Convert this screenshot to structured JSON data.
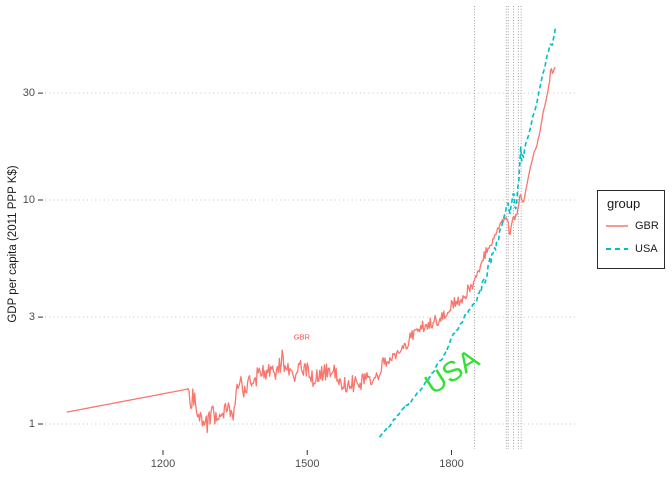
{
  "figure": {
    "background": "#FFFFFF"
  },
  "chart_data": {
    "type": "line",
    "title": "",
    "xlabel": "",
    "ylabel": "GDP per capita (2011 PPP K$)",
    "x_scale": "linear",
    "y_scale": "log10",
    "xlim": [
      955,
      2063
    ],
    "ylim": [
      0.77,
      73.5
    ],
    "x_ticks": [
      1200,
      1500,
      1800
    ],
    "x_tick_labels": [
      "1200",
      "1500",
      "1800"
    ],
    "y_ticks": [
      1,
      3,
      10,
      30
    ],
    "y_tick_labels": [
      "1",
      "3",
      "10",
      "30"
    ],
    "grid": {
      "horizontal": "dotted",
      "vertical": "none",
      "color": "#C7C7C7"
    },
    "vlines": {
      "years": [
        1848,
        1914,
        1918,
        1929,
        1939,
        1945
      ],
      "style": "dotted",
      "color": "#9E9E9E"
    },
    "tick_color": "#333333",
    "legend": {
      "title": "group",
      "position": "right",
      "entries": [
        {
          "label": "GBR"
        },
        {
          "label": "USA"
        }
      ]
    },
    "annotations": [
      {
        "text": "GBR",
        "x": 1489,
        "y": 2.45,
        "color": "#FF4C4C",
        "size": 7.5,
        "rotate": 0
      },
      {
        "text": "USA",
        "x": 1801,
        "y": 1.71,
        "color": "#33E033",
        "size": 28,
        "rotate": -33
      }
    ],
    "series": [
      {
        "name": "GBR",
        "color": "#F8766D",
        "line": "solid",
        "width": 1.3,
        "points": [
          [
            1000,
            1.13
          ],
          [
            1250,
            1.43
          ],
          [
            1254,
            1.33
          ],
          [
            1258,
            1.28
          ],
          [
            1262,
            1.34
          ],
          [
            1268,
            1.24
          ],
          [
            1274,
            1.14
          ],
          [
            1280,
            1.06
          ],
          [
            1286,
            1.01
          ],
          [
            1292,
            1.0
          ],
          [
            1298,
            1.09
          ],
          [
            1304,
            1.12
          ],
          [
            1310,
            1.06
          ],
          [
            1316,
            1.14
          ],
          [
            1322,
            1.1
          ],
          [
            1328,
            1.18
          ],
          [
            1334,
            1.13
          ],
          [
            1340,
            1.17
          ],
          [
            1346,
            1.1
          ],
          [
            1350,
            1.25
          ],
          [
            1354,
            1.48
          ],
          [
            1358,
            1.54
          ],
          [
            1364,
            1.47
          ],
          [
            1370,
            1.43
          ],
          [
            1376,
            1.56
          ],
          [
            1382,
            1.5
          ],
          [
            1388,
            1.58
          ],
          [
            1394,
            1.62
          ],
          [
            1400,
            1.66
          ],
          [
            1408,
            1.73
          ],
          [
            1416,
            1.68
          ],
          [
            1424,
            1.72
          ],
          [
            1432,
            1.63
          ],
          [
            1440,
            1.78
          ],
          [
            1448,
            1.94
          ],
          [
            1454,
            1.8
          ],
          [
            1460,
            1.84
          ],
          [
            1468,
            1.73
          ],
          [
            1476,
            1.68
          ],
          [
            1484,
            1.76
          ],
          [
            1492,
            1.73
          ],
          [
            1500,
            1.7
          ],
          [
            1508,
            1.64
          ],
          [
            1516,
            1.58
          ],
          [
            1524,
            1.63
          ],
          [
            1532,
            1.7
          ],
          [
            1540,
            1.73
          ],
          [
            1548,
            1.62
          ],
          [
            1556,
            1.71
          ],
          [
            1564,
            1.63
          ],
          [
            1572,
            1.53
          ],
          [
            1580,
            1.48
          ],
          [
            1588,
            1.56
          ],
          [
            1596,
            1.5
          ],
          [
            1604,
            1.56
          ],
          [
            1612,
            1.51
          ],
          [
            1620,
            1.55
          ],
          [
            1628,
            1.59
          ],
          [
            1636,
            1.63
          ],
          [
            1644,
            1.69
          ],
          [
            1652,
            1.75
          ],
          [
            1660,
            1.86
          ],
          [
            1668,
            1.93
          ],
          [
            1676,
            2.0
          ],
          [
            1684,
            2.07
          ],
          [
            1692,
            2.18
          ],
          [
            1700,
            2.26
          ],
          [
            1708,
            2.3
          ],
          [
            1716,
            2.45
          ],
          [
            1724,
            2.57
          ],
          [
            1732,
            2.62
          ],
          [
            1740,
            2.72
          ],
          [
            1748,
            2.75
          ],
          [
            1756,
            2.82
          ],
          [
            1764,
            2.87
          ],
          [
            1772,
            2.91
          ],
          [
            1780,
            2.96
          ],
          [
            1788,
            3.05
          ],
          [
            1796,
            3.3
          ],
          [
            1804,
            3.47
          ],
          [
            1812,
            3.52
          ],
          [
            1820,
            3.63
          ],
          [
            1828,
            3.8
          ],
          [
            1836,
            4.0
          ],
          [
            1844,
            4.25
          ],
          [
            1852,
            4.55
          ],
          [
            1860,
            5.0
          ],
          [
            1868,
            5.55
          ],
          [
            1876,
            6.0
          ],
          [
            1884,
            6.4
          ],
          [
            1892,
            7.1
          ],
          [
            1900,
            7.7
          ],
          [
            1907,
            8.1
          ],
          [
            1913,
            8.45
          ],
          [
            1918,
            8.0
          ],
          [
            1921,
            6.6
          ],
          [
            1925,
            8.0
          ],
          [
            1929,
            8.6
          ],
          [
            1932,
            8.2
          ],
          [
            1938,
            9.0
          ],
          [
            1943,
            10.9
          ],
          [
            1947,
            9.6
          ],
          [
            1950,
            9.9
          ],
          [
            1955,
            11.2
          ],
          [
            1960,
            12.6
          ],
          [
            1965,
            14.2
          ],
          [
            1970,
            15.6
          ],
          [
            1973,
            17.0
          ],
          [
            1975,
            16.6
          ],
          [
            1980,
            18.5
          ],
          [
            1985,
            20.6
          ],
          [
            1990,
            24.3
          ],
          [
            1995,
            26.8
          ],
          [
            2000,
            30.0
          ],
          [
            2004,
            34.0
          ],
          [
            2007,
            40.0
          ],
          [
            2009,
            36.5
          ],
          [
            2012,
            37.5
          ],
          [
            2016,
            39.5
          ]
        ],
        "volatility": [
          [
            1252,
            1660,
            0.042
          ],
          [
            1660,
            1872,
            0.026
          ],
          [
            1872,
            1952,
            0.01
          ],
          [
            1952,
            2016,
            0.004
          ]
        ]
      },
      {
        "name": "USA",
        "color": "#00BFC4",
        "line": "dashed",
        "width": 1.6,
        "dash": [
          4.5,
          3
        ],
        "points": [
          [
            1650,
            0.88
          ],
          [
            1660,
            0.93
          ],
          [
            1670,
            0.98
          ],
          [
            1680,
            1.04
          ],
          [
            1690,
            1.1
          ],
          [
            1700,
            1.17
          ],
          [
            1710,
            1.23
          ],
          [
            1720,
            1.3
          ],
          [
            1730,
            1.38
          ],
          [
            1740,
            1.46
          ],
          [
            1750,
            1.56
          ],
          [
            1760,
            1.68
          ],
          [
            1770,
            1.83
          ],
          [
            1780,
            1.95
          ],
          [
            1790,
            2.1
          ],
          [
            1800,
            2.45
          ],
          [
            1810,
            2.6
          ],
          [
            1820,
            2.8
          ],
          [
            1830,
            3.1
          ],
          [
            1840,
            3.3
          ],
          [
            1850,
            3.55
          ],
          [
            1860,
            4.0
          ],
          [
            1870,
            4.4
          ],
          [
            1880,
            5.3
          ],
          [
            1890,
            6.0
          ],
          [
            1900,
            7.0
          ],
          [
            1906,
            8.0
          ],
          [
            1910,
            8.3
          ],
          [
            1913,
            8.8
          ],
          [
            1916,
            9.6
          ],
          [
            1918,
            9.4
          ],
          [
            1921,
            8.4
          ],
          [
            1925,
            10.0
          ],
          [
            1929,
            11.0
          ],
          [
            1933,
            8.6
          ],
          [
            1937,
            10.8
          ],
          [
            1940,
            12.0
          ],
          [
            1944,
            17.5
          ],
          [
            1946,
            15.0
          ],
          [
            1950,
            16.0
          ],
          [
            1955,
            18.0
          ],
          [
            1960,
            19.2
          ],
          [
            1965,
            21.5
          ],
          [
            1970,
            24.0
          ],
          [
            1975,
            25.5
          ],
          [
            1980,
            29.0
          ],
          [
            1985,
            32.5
          ],
          [
            1990,
            36.5
          ],
          [
            1995,
            40.0
          ],
          [
            2000,
            45.0
          ],
          [
            2005,
            49.0
          ],
          [
            2007,
            51.0
          ],
          [
            2009,
            48.0
          ],
          [
            2012,
            52.0
          ],
          [
            2016,
            58.0
          ]
        ],
        "volatility": [
          [
            1650,
            1848,
            0.005
          ],
          [
            1848,
            1952,
            0.016
          ],
          [
            1952,
            2016,
            0.004
          ]
        ]
      }
    ]
  }
}
